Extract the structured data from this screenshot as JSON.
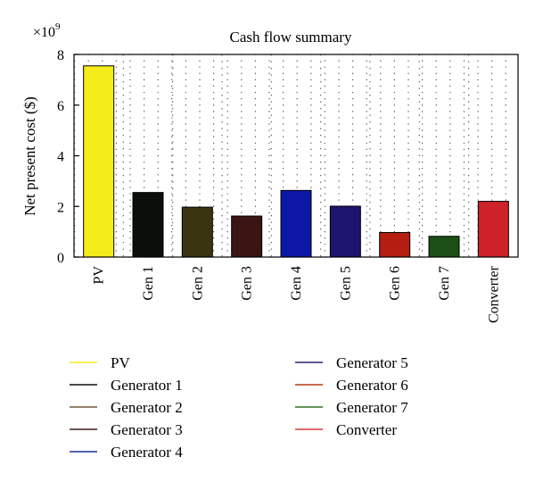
{
  "chart_data": {
    "type": "bar",
    "title": "Cash flow summary",
    "ylabel": "Net present cost ($)",
    "xlabel": "",
    "exponent_base": "×10",
    "exponent_power": "9",
    "ylim": [
      0,
      8
    ],
    "yticks": [
      "0",
      "2",
      "4",
      "6",
      "8"
    ],
    "grid": true,
    "categories": [
      "PV",
      "Gen 1",
      "Gen 2",
      "Gen 3",
      "Gen 4",
      "Gen 5",
      "Gen 6",
      "Gen 7",
      "Converter"
    ],
    "values": [
      7.55,
      2.55,
      1.97,
      1.62,
      2.63,
      2.01,
      0.97,
      0.82,
      2.2
    ],
    "colors": [
      "#f5ec1c",
      "#0b0f0a",
      "#3a3410",
      "#3b1414",
      "#0d17a6",
      "#1d1470",
      "#b31e10",
      "#1c4f16",
      "#cc2228"
    ],
    "legend": {
      "placement": "bottom",
      "entries": [
        {
          "label": "PV",
          "color": "#f5ec1c"
        },
        {
          "label": "Generator 1",
          "color": "#0b0f0a"
        },
        {
          "label": "Generator 2",
          "color": "#6f5a3a"
        },
        {
          "label": "Generator 3",
          "color": "#3b1f18"
        },
        {
          "label": "Generator 4",
          "color": "#1f2f8f"
        },
        {
          "label": "Generator 5",
          "color": "#2a1f6f"
        },
        {
          "label": "Generator 6",
          "color": "#b53a1a"
        },
        {
          "label": "Generator 7",
          "color": "#2f6f1f"
        },
        {
          "label": "Converter",
          "color": "#d83a3a"
        }
      ]
    }
  }
}
